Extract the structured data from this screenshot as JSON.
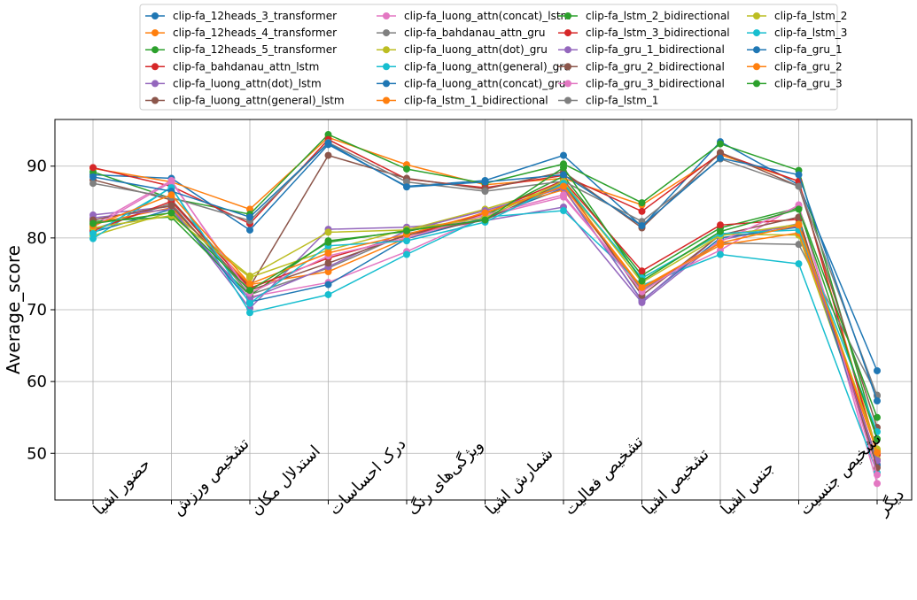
{
  "chart_data": {
    "type": "line",
    "ylabel": "Average_score",
    "xlabel": "",
    "categories": [
      "حضور اشیا",
      "تشخیص ورزش",
      "استدلال مکان",
      "درک احساسات",
      "ویژگی‌های رنگ",
      "شمارش اشیا",
      "تشخیص فعالیت",
      "تشخیص اشیا",
      "جنس اشیا",
      "تشخیص جنسیت",
      "دیگر"
    ],
    "ylim": [
      43.5,
      96.5
    ],
    "yticks": [
      50,
      60,
      70,
      80,
      90
    ],
    "grid": true,
    "legend_position": "top-center",
    "series": [
      {
        "name": "clip-fa_12heads_3_transformer",
        "color": "#1f77b4",
        "values": [
          88.8,
          88.3,
          81.1,
          93.0,
          87.2,
          88.0,
          91.5,
          81.6,
          93.4,
          87.4,
          61.5
        ]
      },
      {
        "name": "clip-fa_12heads_4_transformer",
        "color": "#ff7f0e",
        "values": [
          89.7,
          87.8,
          84.0,
          94.0,
          90.2,
          87.4,
          88.3,
          84.6,
          91.6,
          87.9,
          50.3
        ]
      },
      {
        "name": "clip-fa_12heads_5_transformer",
        "color": "#2ca02c",
        "values": [
          89.2,
          85.5,
          83.3,
          94.4,
          89.6,
          87.6,
          90.3,
          84.9,
          93.1,
          89.4,
          52.0
        ]
      },
      {
        "name": "clip-fa_bahdanau_attn_lstm",
        "color": "#d62728",
        "values": [
          89.8,
          87.2,
          82.0,
          93.7,
          88.2,
          87.0,
          88.7,
          83.7,
          91.8,
          87.9,
          49.8
        ]
      },
      {
        "name": "clip-fa_luong_attn(dot)_lstm",
        "color": "#9467bd",
        "values": [
          83.2,
          84.4,
          70.2,
          81.2,
          81.5,
          82.4,
          84.3,
          71.0,
          79.7,
          82.0,
          48.5
        ]
      },
      {
        "name": "clip-fa_luong_attn(general)_lstm",
        "color": "#8c564b",
        "values": [
          88.1,
          85.3,
          73.2,
          91.5,
          88.3,
          86.8,
          89.2,
          81.4,
          91.9,
          87.2,
          53.6
        ]
      },
      {
        "name": "clip-fa_luong_attn(concat)_lstm",
        "color": "#e377c2",
        "values": [
          81.8,
          88.0,
          71.8,
          73.8,
          78.1,
          83.0,
          85.7,
          73.0,
          78.3,
          84.6,
          45.8
        ]
      },
      {
        "name": "clip-fa_bahdanau_attn_gru",
        "color": "#7f7f7f",
        "values": [
          81.2,
          84.8,
          72.1,
          75.8,
          80.6,
          82.6,
          87.4,
          72.7,
          79.3,
          79.1,
          58.1
        ]
      },
      {
        "name": "clip-fa_luong_attn(dot)_gru",
        "color": "#bcbd22",
        "values": [
          80.3,
          83.6,
          74.7,
          80.8,
          81.1,
          84.0,
          87.3,
          74.4,
          80.5,
          80.4,
          49.2
        ]
      },
      {
        "name": "clip-fa_luong_attn(general)_gru",
        "color": "#17becf",
        "values": [
          79.9,
          87.1,
          69.6,
          72.1,
          77.7,
          82.9,
          83.8,
          73.4,
          77.7,
          76.4,
          47.3
        ]
      },
      {
        "name": "clip-fa_luong_attn(concat)_gru",
        "color": "#1f77b4",
        "values": [
          80.8,
          84.0,
          71.1,
          73.5,
          79.9,
          82.8,
          86.9,
          71.3,
          80.0,
          81.5,
          48.3
        ]
      },
      {
        "name": "clip-fa_lstm_1_bidirectional",
        "color": "#ff7f0e",
        "values": [
          82.0,
          84.2,
          73.5,
          75.3,
          80.0,
          83.6,
          86.7,
          73.0,
          79.0,
          80.7,
          50.3
        ]
      },
      {
        "name": "clip-fa_lstm_2_bidirectional",
        "color": "#2ca02c",
        "values": [
          82.3,
          82.9,
          72.0,
          79.6,
          80.9,
          83.1,
          88.6,
          74.8,
          81.4,
          84.2,
          55.0
        ]
      },
      {
        "name": "clip-fa_lstm_3_bidirectional",
        "color": "#d62728",
        "values": [
          81.0,
          85.1,
          73.0,
          77.2,
          80.3,
          83.4,
          88.0,
          75.4,
          81.8,
          82.6,
          49.0
        ]
      },
      {
        "name": "clip-fa_gru_1_bidirectional",
        "color": "#9467bd",
        "values": [
          82.8,
          84.0,
          71.5,
          76.0,
          81.0,
          83.8,
          87.0,
          71.2,
          80.5,
          81.6,
          49.0
        ]
      },
      {
        "name": "clip-fa_gru_2_bidirectional",
        "color": "#8c564b",
        "values": [
          82.5,
          84.5,
          72.7,
          76.5,
          80.4,
          82.5,
          87.7,
          72.0,
          80.4,
          82.9,
          48.0
        ]
      },
      {
        "name": "clip-fa_gru_3_bidirectional",
        "color": "#e377c2",
        "values": [
          81.5,
          87.8,
          72.3,
          77.5,
          80.0,
          83.2,
          86.0,
          72.5,
          79.5,
          84.5,
          47.0
        ]
      },
      {
        "name": "clip-fa_lstm_1",
        "color": "#7f7f7f",
        "values": [
          87.6,
          85.6,
          82.4,
          93.3,
          87.8,
          86.5,
          87.9,
          82.3,
          91.0,
          87.2,
          58.0
        ]
      },
      {
        "name": "clip-fa_lstm_2",
        "color": "#bcbd22",
        "values": [
          81.4,
          83.1,
          74.5,
          78.3,
          81.2,
          82.8,
          87.9,
          73.8,
          80.3,
          81.9,
          50.6
        ]
      },
      {
        "name": "clip-fa_lstm_3",
        "color": "#17becf",
        "values": [
          80.6,
          87.0,
          70.9,
          78.9,
          79.6,
          82.2,
          87.6,
          74.4,
          80.6,
          81.1,
          53.0
        ]
      },
      {
        "name": "clip-fa_gru_1",
        "color": "#1f77b4",
        "values": [
          88.5,
          86.5,
          82.9,
          93.2,
          87.1,
          87.8,
          88.8,
          81.7,
          91.1,
          88.8,
          57.3
        ]
      },
      {
        "name": "clip-fa_gru_2",
        "color": "#ff7f0e",
        "values": [
          81.7,
          86.0,
          73.6,
          77.9,
          80.5,
          83.5,
          87.2,
          73.1,
          79.3,
          81.8,
          50.1
        ]
      },
      {
        "name": "clip-fa_gru_3",
        "color": "#2ca02c",
        "values": [
          82.0,
          83.5,
          72.7,
          79.4,
          81.0,
          82.5,
          89.8,
          74.0,
          80.9,
          84.0,
          52.0
        ]
      }
    ]
  }
}
